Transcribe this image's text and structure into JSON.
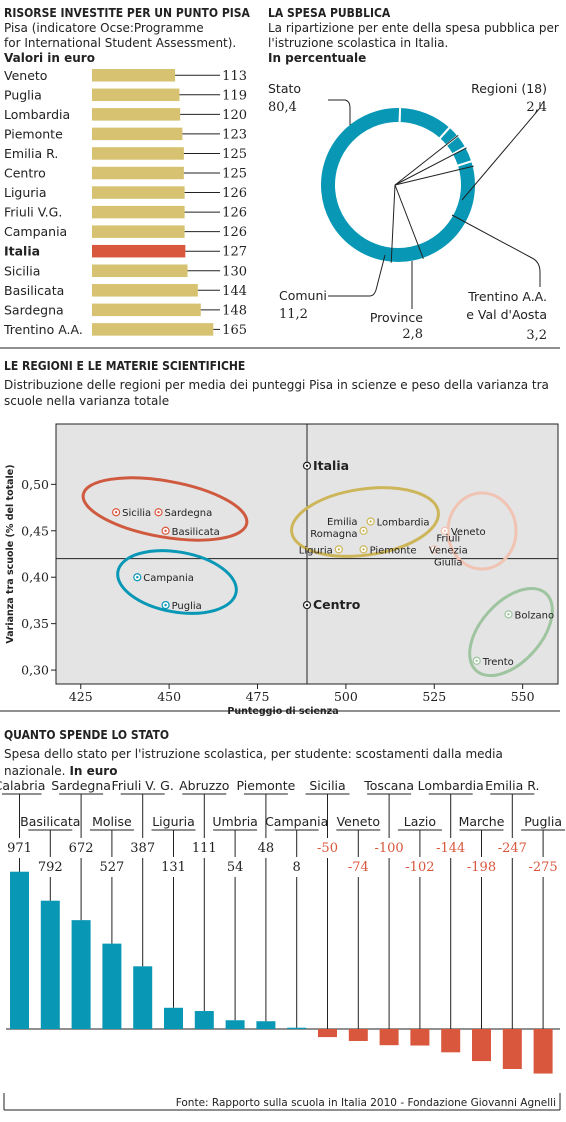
{
  "section1": {
    "title": "RISORSE INVESTITE PER UN PUNTO PISA",
    "subtitle_lines": [
      "Pisa (indicatore Ocse:Programme",
      "for International Student Assessment)."
    ],
    "unit": "Valori in euro"
  },
  "section2": {
    "title": "LA SPESA PUBBLICA",
    "subtitle_lines": [
      "La ripartizione per ente della spesa pubblica per",
      "l'istruzione scolastica in Italia."
    ],
    "unit": "In percentuale"
  },
  "section3": {
    "title": "LE REGIONI E LE MATERIE SCIENTIFICHE",
    "subtitle_lines": [
      "Distribuzione delle regioni per media dei punteggi Pisa in scienze e peso della varianza tra",
      "scuole nella varianza totale"
    ]
  },
  "section4": {
    "title": "QUANTO SPENDE LO STATO",
    "subtitle_lines": [
      "Spesa dello stato per l'istruzione scolastica, per studente: scostamenti dalla media",
      "nazionale."
    ],
    "unit": "In euro"
  },
  "source": "Fonte: Rapporto sulla scuola in Italia 2010 - Fondazione Giovanni Agnelli",
  "colors": {
    "gold": "#d6c271",
    "red": "#d8573d",
    "teal": "#0898b6",
    "grid_bg": "#e4e4e4",
    "gold_ring": "#cdb65a",
    "red_ring": "#cf5a3f",
    "teal_ring": "#0898b6",
    "pink_ring": "#f1c3b3",
    "green_ring": "#9ec4a0"
  },
  "chart_data": [
    {
      "type": "bar",
      "orientation": "horizontal",
      "title": "RISORSE INVESTITE PER UN PUNTO PISA",
      "categories": [
        "Veneto",
        "Puglia",
        "Lombardia",
        "Piemonte",
        "Emilia R.",
        "Centro",
        "Liguria",
        "Friuli V.G.",
        "Campania",
        "Italia",
        "Sicilia",
        "Basilicata",
        "Sardegna",
        "Trentino A.A."
      ],
      "values": [
        113,
        119,
        120,
        123,
        125,
        125,
        126,
        126,
        126,
        127,
        130,
        144,
        148,
        165
      ],
      "highlight": "Italia",
      "unit": "Valori in euro"
    },
    {
      "type": "pie",
      "style": "donut",
      "title": "LA SPESA PUBBLICA",
      "slices": [
        {
          "label": "Stato",
          "value": 80.4,
          "value_label": "80,4"
        },
        {
          "label": "Comuni",
          "value": 11.2,
          "value_label": "11,2"
        },
        {
          "label": "Province",
          "value": 2.8,
          "value_label": "2,8"
        },
        {
          "label": "Trentino A.A. e Val d'Aosta",
          "label_lines": [
            "Trentino A.A.",
            "e Val d'Aosta"
          ],
          "value": 3.2,
          "value_label": "3,2"
        },
        {
          "label": "Regioni (18)",
          "value": 2.4,
          "value_label": "2,4"
        }
      ]
    },
    {
      "type": "scatter",
      "title": "LE REGIONI E LE MATERIE SCIENTIFICHE",
      "xlabel": "Punteggio di scienza",
      "ylabel": "Varianza tra scuole (% del totale)",
      "xlim": [
        418,
        560
      ],
      "ylim": [
        0.285,
        0.565
      ],
      "xticks": [
        425,
        450,
        475,
        500,
        525,
        550
      ],
      "yticks": [
        0.3,
        0.35,
        0.4,
        0.45,
        0.5
      ],
      "ytick_labels": [
        "0,30",
        "0,35",
        "0,40",
        "0,45",
        "0,50"
      ],
      "reference_lines": {
        "x": 489,
        "y": 0.42
      },
      "points": [
        {
          "label": "Italia",
          "x": 489,
          "y": 0.52,
          "group": "ref"
        },
        {
          "label": "Centro",
          "x": 489,
          "y": 0.37,
          "group": "ref"
        },
        {
          "label": "Sicilia",
          "x": 435,
          "y": 0.47,
          "group": "red"
        },
        {
          "label": "Sardegna",
          "x": 447,
          "y": 0.47,
          "group": "red"
        },
        {
          "label": "Basilicata",
          "x": 449,
          "y": 0.45,
          "group": "red"
        },
        {
          "label": "Campania",
          "x": 441,
          "y": 0.4,
          "group": "teal"
        },
        {
          "label": "Puglia",
          "x": 449,
          "y": 0.37,
          "group": "teal"
        },
        {
          "label": "Emilia Romagna",
          "label_lines": [
            "Emilia",
            "Romagna"
          ],
          "x": 505,
          "y": 0.45,
          "group": "gold"
        },
        {
          "label": "Lombardia",
          "x": 507,
          "y": 0.46,
          "group": "gold"
        },
        {
          "label": "Liguria",
          "x": 498,
          "y": 0.43,
          "group": "gold"
        },
        {
          "label": "Piemonte",
          "x": 505,
          "y": 0.43,
          "group": "gold"
        },
        {
          "label": "Veneto",
          "x": 528,
          "y": 0.45,
          "group": "pink"
        },
        {
          "label": "Friuli Venezia Giulia",
          "label_lines": [
            "Friuli",
            "Venezia",
            "Giulia"
          ],
          "x": 525,
          "y": 0.43,
          "group": "pink"
        },
        {
          "label": "Bolzano",
          "x": 546,
          "y": 0.36,
          "group": "green"
        },
        {
          "label": "Trento",
          "x": 537,
          "y": 0.31,
          "group": "green"
        }
      ]
    },
    {
      "type": "bar",
      "title": "QUANTO SPENDE LO STATO",
      "unit": "In euro",
      "categories": [
        "Calabria",
        "Basilicata",
        "Sardegna",
        "Molise",
        "Friuli V. G.",
        "Liguria",
        "Abruzzo",
        "Umbria",
        "Piemonte",
        "Campania",
        "Sicilia",
        "Veneto",
        "Toscana",
        "Lazio",
        "Lombardia",
        "Marche",
        "Emilia R.",
        "Puglia"
      ],
      "values": [
        971,
        792,
        672,
        527,
        387,
        131,
        111,
        54,
        48,
        8,
        -50,
        -74,
        -100,
        -102,
        -144,
        -198,
        -247,
        -275
      ],
      "value_labels": [
        "971",
        "792",
        "672",
        "527",
        "387",
        "131",
        "111",
        "54",
        "48",
        "8",
        "-50",
        "-74",
        "-100",
        "-102",
        "-144",
        "-198",
        "-247",
        "-275"
      ]
    }
  ]
}
